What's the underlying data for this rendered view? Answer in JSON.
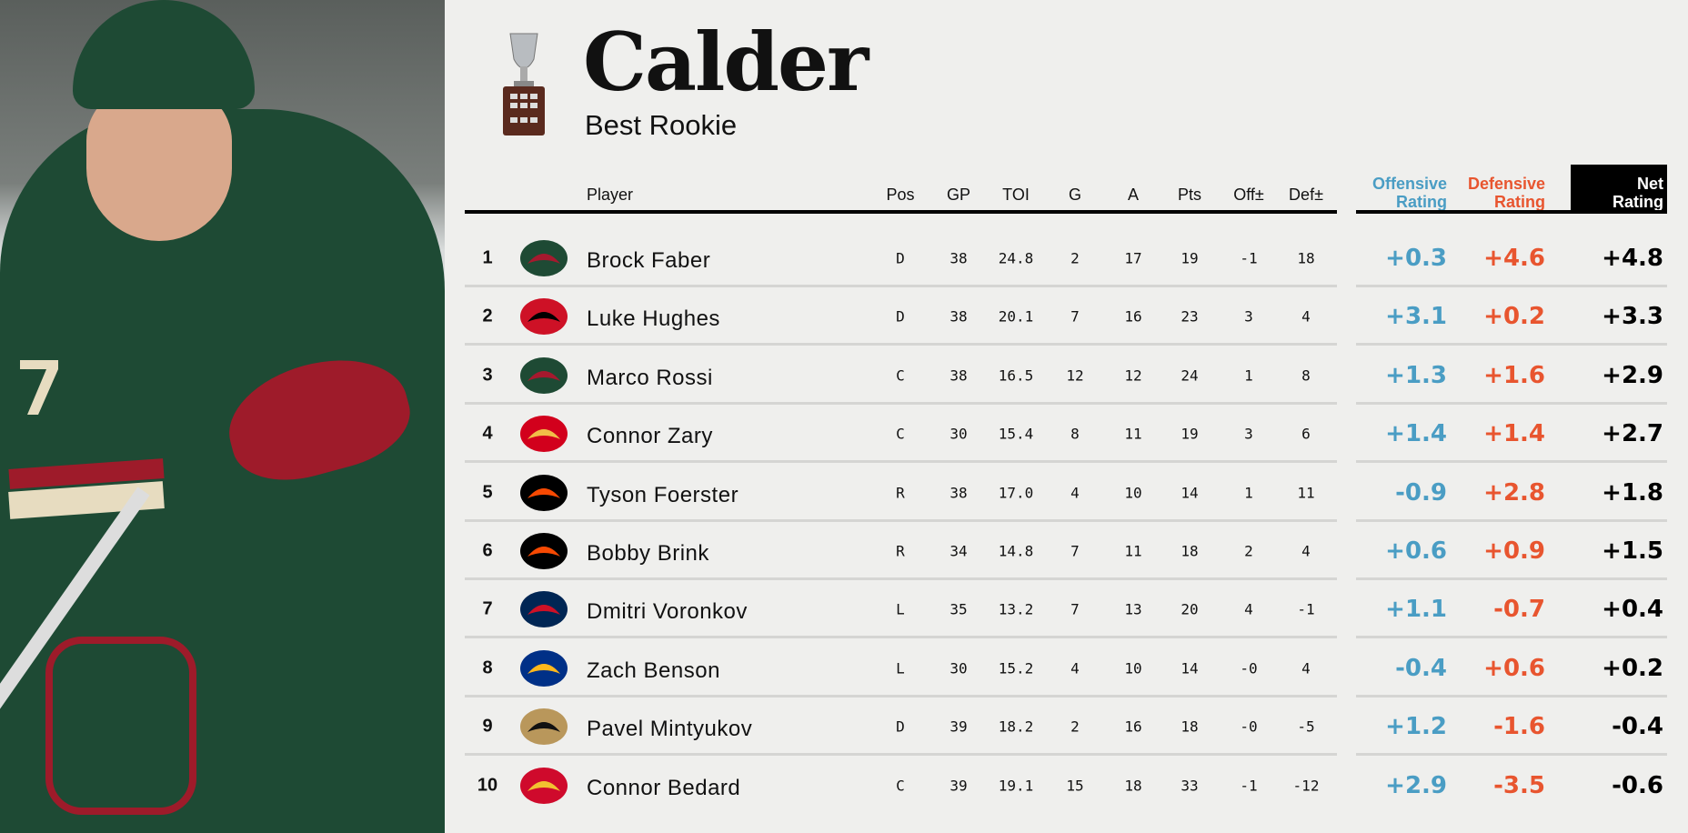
{
  "header": {
    "title": "Calder",
    "subtitle": "Best Rookie"
  },
  "colors": {
    "offensive": "#4a9dc4",
    "defensive": "#e8552f",
    "net": "#000000"
  },
  "columns": {
    "player": "Player",
    "pos": "Pos",
    "gp": "GP",
    "toi": "TOI",
    "g": "G",
    "a": "A",
    "pts": "Pts",
    "off": "Off±",
    "def": "Def±",
    "off_rating": [
      "Offensive",
      "Rating"
    ],
    "def_rating": [
      "Defensive",
      "Rating"
    ],
    "net_rating": [
      "Net",
      "Rating"
    ]
  },
  "rows": [
    {
      "rank": "1",
      "team_icon": "wild-logo",
      "team_color": "#1e4a34",
      "team_accent": "#a6192e",
      "name": "Brock Faber",
      "pos": "D",
      "gp": "38",
      "toi": "24.8",
      "g": "2",
      "a": "17",
      "pts": "19",
      "off": "-1",
      "def": "18",
      "off_rating": "+0.3",
      "def_rating": "+4.6",
      "net_rating": "+4.8"
    },
    {
      "rank": "2",
      "team_icon": "devils-logo",
      "team_color": "#ce1126",
      "team_accent": "#000000",
      "name": "Luke Hughes",
      "pos": "D",
      "gp": "38",
      "toi": "20.1",
      "g": "7",
      "a": "16",
      "pts": "23",
      "off": "3",
      "def": "4",
      "off_rating": "+3.1",
      "def_rating": "+0.2",
      "net_rating": "+3.3"
    },
    {
      "rank": "3",
      "team_icon": "wild-logo",
      "team_color": "#1e4a34",
      "team_accent": "#a6192e",
      "name": "Marco Rossi",
      "pos": "C",
      "gp": "38",
      "toi": "16.5",
      "g": "12",
      "a": "12",
      "pts": "24",
      "off": "1",
      "def": "8",
      "off_rating": "+1.3",
      "def_rating": "+1.6",
      "net_rating": "+2.9"
    },
    {
      "rank": "4",
      "team_icon": "flames-logo",
      "team_color": "#d2001c",
      "team_accent": "#f1be48",
      "name": "Connor Zary",
      "pos": "C",
      "gp": "30",
      "toi": "15.4",
      "g": "8",
      "a": "11",
      "pts": "19",
      "off": "3",
      "def": "6",
      "off_rating": "+1.4",
      "def_rating": "+1.4",
      "net_rating": "+2.7"
    },
    {
      "rank": "5",
      "team_icon": "flyers-logo",
      "team_color": "#000000",
      "team_accent": "#f74902",
      "name": "Tyson Foerster",
      "pos": "R",
      "gp": "38",
      "toi": "17.0",
      "g": "4",
      "a": "10",
      "pts": "14",
      "off": "1",
      "def": "11",
      "off_rating": "-0.9",
      "def_rating": "+2.8",
      "net_rating": "+1.8"
    },
    {
      "rank": "6",
      "team_icon": "flyers-logo",
      "team_color": "#000000",
      "team_accent": "#f74902",
      "name": "Bobby Brink",
      "pos": "R",
      "gp": "34",
      "toi": "14.8",
      "g": "7",
      "a": "11",
      "pts": "18",
      "off": "2",
      "def": "4",
      "off_rating": "+0.6",
      "def_rating": "+0.9",
      "net_rating": "+1.5"
    },
    {
      "rank": "7",
      "team_icon": "blue-jackets-logo",
      "team_color": "#002654",
      "team_accent": "#ce1126",
      "name": "Dmitri Voronkov",
      "pos": "L",
      "gp": "35",
      "toi": "13.2",
      "g": "7",
      "a": "13",
      "pts": "20",
      "off": "4",
      "def": "-1",
      "off_rating": "+1.1",
      "def_rating": "-0.7",
      "net_rating": "+0.4"
    },
    {
      "rank": "8",
      "team_icon": "sabres-logo",
      "team_color": "#003087",
      "team_accent": "#ffb81c",
      "name": "Zach Benson",
      "pos": "L",
      "gp": "30",
      "toi": "15.2",
      "g": "4",
      "a": "10",
      "pts": "14",
      "off": "-0",
      "def": "4",
      "off_rating": "-0.4",
      "def_rating": "+0.6",
      "net_rating": "+0.2"
    },
    {
      "rank": "9",
      "team_icon": "ducks-logo",
      "team_color": "#b9975b",
      "team_accent": "#111111",
      "name": "Pavel Mintyukov",
      "pos": "D",
      "gp": "39",
      "toi": "18.2",
      "g": "2",
      "a": "16",
      "pts": "18",
      "off": "-0",
      "def": "-5",
      "off_rating": "+1.2",
      "def_rating": "-1.6",
      "net_rating": "-0.4"
    },
    {
      "rank": "10",
      "team_icon": "blackhawks-logo",
      "team_color": "#cf0a2c",
      "team_accent": "#f2c230",
      "name": "Connor Bedard",
      "pos": "C",
      "gp": "39",
      "toi": "19.1",
      "g": "15",
      "a": "18",
      "pts": "33",
      "off": "-1",
      "def": "-12",
      "off_rating": "+2.9",
      "def_rating": "-3.5",
      "net_rating": "-0.6"
    }
  ]
}
